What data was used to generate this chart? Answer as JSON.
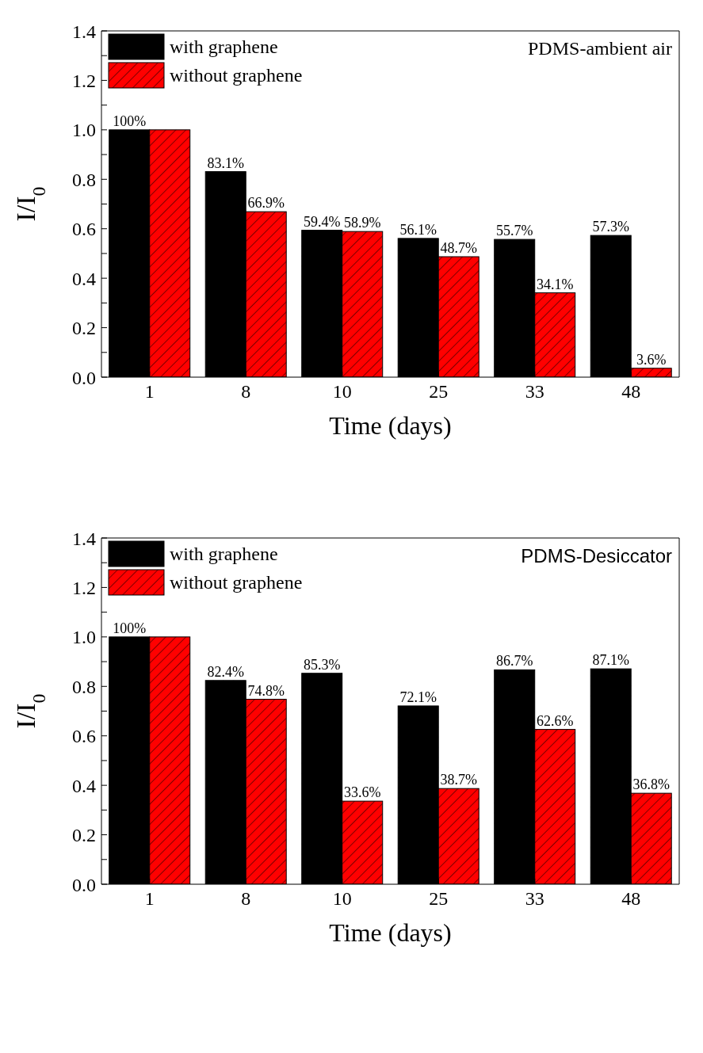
{
  "chart_data": [
    {
      "type": "bar",
      "annotations": [
        "PDMS-ambient air"
      ],
      "xlabel": "Time (days)",
      "ylabel": "I/I$_{0}$",
      "categories": [
        "1",
        "8",
        "10",
        "25",
        "33",
        "48"
      ],
      "series": [
        {
          "name": "with graphene",
          "color": "#000000",
          "values": [
            1.0,
            0.831,
            0.594,
            0.561,
            0.557,
            0.573
          ],
          "value_labels": [
            "100%",
            "83.1%",
            "59.4%",
            "56.1%",
            "55.7%",
            "57.3%"
          ]
        },
        {
          "name": "without graphene",
          "color": "#ff0000",
          "values": [
            1.0,
            0.669,
            0.589,
            0.487,
            0.341,
            0.036
          ],
          "value_labels": [
            null,
            "66.9%",
            "58.9%",
            "48.7%",
            "34.1%",
            "3.6%"
          ]
        }
      ],
      "ylim": [
        0,
        1.4
      ],
      "yticks": [
        {
          "value": 0,
          "label": "0.0"
        },
        {
          "value": 0.1,
          "label": null
        },
        {
          "value": 0.2,
          "label": "0.2"
        },
        {
          "value": 0.3,
          "label": null
        },
        {
          "value": 0.4,
          "label": "0.4"
        },
        {
          "value": 0.5,
          "label": null
        },
        {
          "value": 0.6,
          "label": "0.6"
        },
        {
          "value": 0.7,
          "label": null
        },
        {
          "value": 0.8,
          "label": "0.8"
        },
        {
          "value": 0.9,
          "label": null
        },
        {
          "value": 1,
          "label": "1.0"
        },
        {
          "value": 1.1,
          "label": null
        },
        {
          "value": 1.2,
          "label": "1.2"
        },
        {
          "value": 1.3,
          "label": null
        },
        {
          "value": 1.4,
          "label": "1.4"
        }
      ],
      "grid": false,
      "legend": "top left"
    },
    {
      "type": "bar",
      "annotations": [
        "PDMS-Desiccator"
      ],
      "xlabel": "Time (days)",
      "ylabel": "I/I$_{0}$",
      "categories": [
        "1",
        "8",
        "10",
        "25",
        "33",
        "48"
      ],
      "series": [
        {
          "name": "with graphene",
          "color": "#000000",
          "values": [
            1.0,
            0.824,
            0.853,
            0.721,
            0.867,
            0.871
          ],
          "value_labels": [
            "100%",
            "82.4%",
            "85.3%",
            "72.1%",
            "86.7%",
            "87.1%"
          ]
        },
        {
          "name": "without graphene",
          "color": "#ff0000",
          "values": [
            1.0,
            0.748,
            0.336,
            0.387,
            0.626,
            0.368
          ],
          "value_labels": [
            null,
            "74.8%",
            "33.6%",
            "38.7%",
            "62.6%",
            "36.8%"
          ]
        }
      ],
      "ylim": [
        0,
        1.4
      ],
      "yticks": [
        {
          "value": 0,
          "label": "0.0"
        },
        {
          "value": 0.1,
          "label": null
        },
        {
          "value": 0.2,
          "label": "0.2"
        },
        {
          "value": 0.3,
          "label": null
        },
        {
          "value": 0.4,
          "label": "0.4"
        },
        {
          "value": 0.5,
          "label": null
        },
        {
          "value": 0.6,
          "label": "0.6"
        },
        {
          "value": 0.7,
          "label": null
        },
        {
          "value": 0.8,
          "label": "0.8"
        },
        {
          "value": 0.9,
          "label": null
        },
        {
          "value": 1,
          "label": "1.0"
        },
        {
          "value": 1.1,
          "label": null
        },
        {
          "value": 1.2,
          "label": "1.2"
        },
        {
          "value": 1.3,
          "label": null
        },
        {
          "value": 1.4,
          "label": "1.4"
        }
      ],
      "grid": false,
      "legend": "top left"
    }
  ]
}
